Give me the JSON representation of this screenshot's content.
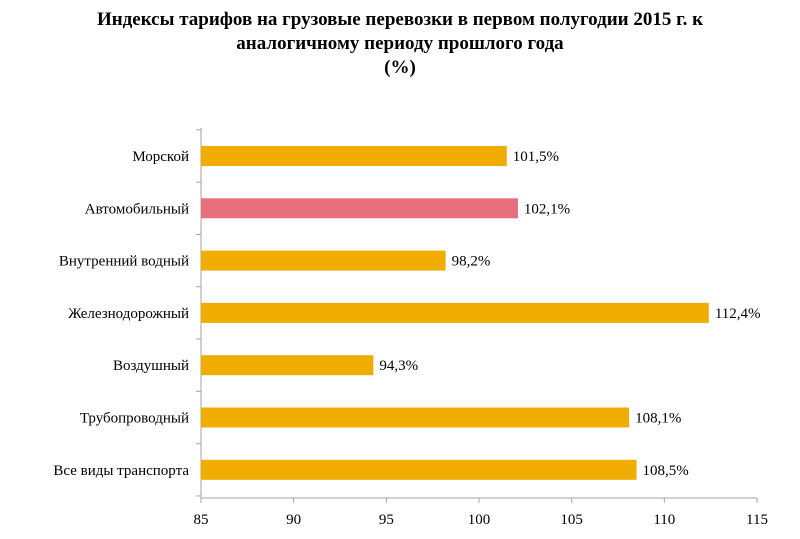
{
  "chart_data": {
    "type": "bar",
    "orientation": "horizontal",
    "title_lines": [
      "Индексы тарифов на грузовые перевозки в первом полугодии 2015 г. к",
      "аналогичному периоду прошлого года",
      "(%)"
    ],
    "categories": [
      "Морской",
      "Автомобильный",
      "Внутренний водный",
      "Железнодорожный",
      "Воздушный",
      "Трубопроводный",
      "Все виды транспорта"
    ],
    "values": [
      101.5,
      102.1,
      98.2,
      112.4,
      94.3,
      108.1,
      108.5
    ],
    "value_labels": [
      "101,5%",
      "102,1%",
      "98,2%",
      "112,4%",
      "94,3%",
      "108,1%",
      "108,5%"
    ],
    "colors": [
      "#F0AD00",
      "#E8707E",
      "#F0AD00",
      "#F0AD00",
      "#F0AD00",
      "#F0AD00",
      "#F0AD00"
    ],
    "xlim": [
      85,
      115
    ],
    "xticks": [
      85,
      90,
      95,
      100,
      105,
      110,
      115
    ],
    "grid": false,
    "legend": "none"
  }
}
